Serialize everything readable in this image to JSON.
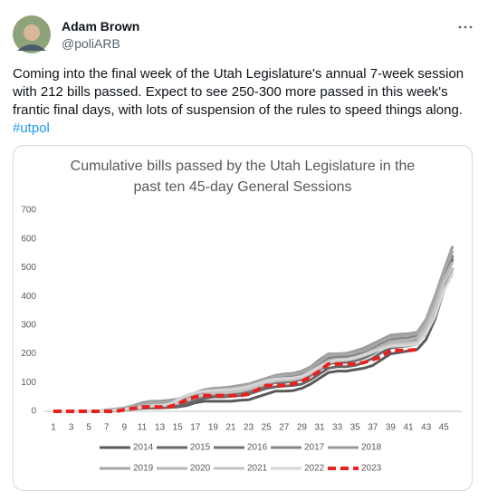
{
  "tweet": {
    "name": "Adam Brown",
    "handle": "@poliARB",
    "text": "Coming into the final week of the Utah Legislature's annual 7-week session with 212 bills passed. Expect to see 250-300 more passed in this week's frantic final days, with lots of suspension of the rules to speed things along.",
    "hashtag": "#utpol"
  },
  "chart_data": {
    "type": "line",
    "title": "Cumulative bills passed by the Utah Legislature in the past ten 45-day General Sessions",
    "categories": [
      1,
      null,
      3,
      null,
      5,
      null,
      7,
      null,
      9,
      null,
      11,
      null,
      13,
      null,
      15,
      null,
      17,
      null,
      19,
      null,
      21,
      null,
      23,
      null,
      25,
      null,
      27,
      null,
      29,
      null,
      31,
      null,
      33,
      null,
      35,
      null,
      37,
      null,
      39,
      null,
      41,
      null,
      43,
      null,
      45,
      null
    ],
    "ylim": [
      0,
      700
    ],
    "yticks": [
      0,
      100,
      200,
      300,
      400,
      500,
      600,
      700
    ],
    "grid": false,
    "series": [
      {
        "name": "2014",
        "color": "#5a5a5a",
        "dashed": false,
        "values": [
          0,
          0,
          0,
          0,
          0,
          0,
          0,
          2,
          5,
          8,
          10,
          12,
          12,
          14,
          15,
          20,
          30,
          35,
          35,
          35,
          35,
          38,
          40,
          50,
          60,
          70,
          70,
          72,
          80,
          95,
          115,
          135,
          140,
          140,
          145,
          150,
          160,
          180,
          200,
          205,
          210,
          215,
          250,
          320,
          420,
          500
        ]
      },
      {
        "name": "2015",
        "color": "#666666",
        "dashed": false,
        "values": [
          0,
          0,
          0,
          0,
          0,
          0,
          0,
          3,
          6,
          10,
          12,
          15,
          15,
          16,
          18,
          25,
          35,
          45,
          50,
          50,
          52,
          55,
          60,
          70,
          80,
          85,
          88,
          90,
          95,
          110,
          130,
          150,
          155,
          155,
          160,
          170,
          185,
          205,
          220,
          225,
          228,
          235,
          280,
          350,
          450,
          530
        ]
      },
      {
        "name": "2016",
        "color": "#737373",
        "dashed": false,
        "values": [
          0,
          0,
          0,
          0,
          0,
          0,
          2,
          5,
          8,
          12,
          15,
          18,
          18,
          20,
          25,
          35,
          45,
          55,
          60,
          60,
          62,
          65,
          70,
          80,
          90,
          100,
          100,
          105,
          110,
          125,
          145,
          165,
          170,
          170,
          175,
          185,
          200,
          220,
          235,
          240,
          240,
          250,
          300,
          380,
          470,
          540
        ]
      },
      {
        "name": "2017",
        "color": "#858585",
        "dashed": false,
        "values": [
          0,
          0,
          0,
          0,
          0,
          0,
          3,
          6,
          10,
          15,
          20,
          25,
          25,
          28,
          32,
          42,
          55,
          65,
          70,
          70,
          72,
          75,
          80,
          92,
          105,
          115,
          118,
          120,
          130,
          145,
          165,
          185,
          190,
          190,
          195,
          205,
          220,
          235,
          250,
          255,
          255,
          262,
          310,
          390,
          480,
          545
        ]
      },
      {
        "name": "2018",
        "color": "#999999",
        "dashed": false,
        "values": [
          0,
          0,
          0,
          0,
          0,
          0,
          5,
          8,
          12,
          20,
          30,
          35,
          35,
          38,
          42,
          55,
          65,
          75,
          80,
          82,
          85,
          90,
          95,
          105,
          115,
          125,
          130,
          132,
          140,
          155,
          180,
          200,
          200,
          202,
          210,
          220,
          235,
          250,
          265,
          268,
          270,
          275,
          320,
          400,
          490,
          575
        ]
      },
      {
        "name": "2019",
        "color": "#a6a6a6",
        "dashed": false,
        "values": [
          0,
          0,
          0,
          0,
          0,
          0,
          4,
          7,
          10,
          18,
          25,
          30,
          30,
          32,
          36,
          48,
          60,
          70,
          78,
          80,
          82,
          86,
          92,
          102,
          112,
          122,
          126,
          128,
          135,
          150,
          172,
          195,
          198,
          200,
          205,
          212,
          228,
          245,
          258,
          262,
          265,
          270,
          315,
          395,
          485,
          560
        ]
      },
      {
        "name": "2020",
        "color": "#b5b5b5",
        "dashed": false,
        "values": [
          0,
          0,
          0,
          0,
          0,
          0,
          3,
          6,
          9,
          14,
          18,
          22,
          22,
          24,
          30,
          40,
          50,
          60,
          65,
          66,
          68,
          72,
          78,
          88,
          98,
          108,
          110,
          114,
          120,
          135,
          155,
          175,
          180,
          182,
          188,
          198,
          212,
          228,
          242,
          246,
          248,
          255,
          300,
          370,
          460,
          520
        ]
      },
      {
        "name": "2021",
        "color": "#c4c4c4",
        "dashed": false,
        "values": [
          0,
          0,
          0,
          0,
          0,
          0,
          2,
          4,
          6,
          10,
          14,
          18,
          20,
          22,
          28,
          38,
          48,
          58,
          62,
          64,
          66,
          70,
          76,
          86,
          96,
          106,
          108,
          110,
          116,
          132,
          150,
          170,
          176,
          178,
          184,
          194,
          206,
          220,
          232,
          236,
          238,
          242,
          285,
          355,
          445,
          500
        ]
      },
      {
        "name": "2022",
        "color": "#d6d6d6",
        "dashed": false,
        "values": [
          0,
          0,
          0,
          0,
          0,
          0,
          2,
          4,
          6,
          10,
          14,
          18,
          20,
          24,
          40,
          55,
          65,
          70,
          72,
          74,
          76,
          80,
          86,
          96,
          106,
          112,
          114,
          116,
          122,
          138,
          156,
          172,
          178,
          180,
          186,
          196,
          208,
          218,
          226,
          228,
          230,
          235,
          270,
          330,
          420,
          480
        ]
      },
      {
        "name": "2023",
        "color": "#e8201e",
        "dashed": true,
        "values": [
          0,
          0,
          0,
          0,
          0,
          0,
          0,
          0,
          5,
          10,
          15,
          15,
          15,
          15,
          25,
          40,
          50,
          55,
          55,
          55,
          55,
          55,
          60,
          75,
          90,
          90,
          90,
          95,
          105,
          120,
          140,
          165,
          165,
          165,
          165,
          170,
          180,
          190,
          212,
          212,
          212,
          215,
          null,
          null,
          null,
          null
        ]
      }
    ]
  }
}
